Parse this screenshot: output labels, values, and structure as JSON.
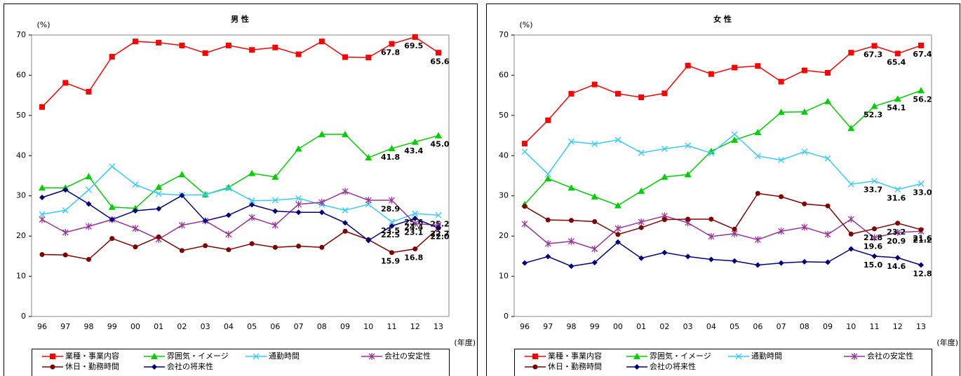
{
  "chart_data": [
    {
      "type": "line",
      "title": "男 性",
      "y_unit": "(%)",
      "x_unit": "(年度)",
      "categories": [
        "96",
        "97",
        "98",
        "99",
        "00",
        "01",
        "02",
        "03",
        "04",
        "05",
        "06",
        "07",
        "08",
        "09",
        "10",
        "11",
        "12",
        "13"
      ],
      "ylim": [
        0,
        70
      ],
      "yticks": [
        0,
        10,
        20,
        30,
        40,
        50,
        60,
        70
      ],
      "grid": false,
      "legend": "bottom",
      "series": [
        {
          "name": "業種・事業内容",
          "color": "#ff0000",
          "marker": "square",
          "values": [
            52.1,
            58.1,
            55.9,
            64.6,
            68.4,
            68.1,
            67.4,
            65.5,
            67.4,
            66.3,
            66.9,
            65.2,
            68.4,
            64.5,
            64.4,
            67.8,
            69.5,
            65.6
          ],
          "value_labels": [
            null,
            null,
            null,
            null,
            null,
            null,
            null,
            null,
            null,
            null,
            null,
            null,
            null,
            null,
            null,
            "67.8",
            "69.5",
            "65.6"
          ]
        },
        {
          "name": "雰囲気・イメージ",
          "color": "#00d000",
          "marker": "triangle",
          "values": [
            32.0,
            32.0,
            34.8,
            27.2,
            26.9,
            32.2,
            35.3,
            30.3,
            32.1,
            35.6,
            34.7,
            41.7,
            45.3,
            45.3,
            39.5,
            41.8,
            43.4,
            45.0
          ],
          "value_labels": [
            null,
            null,
            null,
            null,
            null,
            null,
            null,
            null,
            null,
            null,
            null,
            null,
            null,
            null,
            null,
            "41.8",
            "43.4",
            "45.0"
          ]
        },
        {
          "name": "通勤時間",
          "color": "#33ccff",
          "marker": "x",
          "values": [
            25.4,
            26.4,
            31.5,
            37.3,
            32.8,
            30.5,
            30.2,
            30.3,
            31.9,
            28.8,
            28.9,
            29.4,
            27.8,
            26.4,
            27.9,
            23.5,
            25.6,
            25.2
          ],
          "value_labels": [
            null,
            null,
            null,
            null,
            null,
            null,
            null,
            null,
            null,
            null,
            null,
            null,
            null,
            null,
            null,
            "23.5",
            "25.6",
            "25.2"
          ]
        },
        {
          "name": "会社の安定性",
          "color": "#993399",
          "marker": "asterisk",
          "values": [
            24.1,
            20.9,
            22.4,
            24.1,
            21.9,
            19.2,
            22.7,
            23.8,
            20.4,
            24.6,
            22.7,
            27.9,
            28.4,
            31.1,
            28.9,
            28.9,
            23.1,
            22.7
          ],
          "value_labels": [
            null,
            null,
            null,
            null,
            null,
            null,
            null,
            null,
            null,
            null,
            null,
            null,
            null,
            null,
            null,
            "28.9",
            "23.1",
            "22.7"
          ]
        },
        {
          "name": "休日・勤務時間",
          "color": "#800000",
          "marker": "circle",
          "values": [
            15.4,
            15.3,
            14.2,
            19.4,
            17.3,
            19.8,
            16.4,
            17.6,
            16.6,
            18.1,
            17.2,
            17.5,
            17.2,
            21.2,
            19.1,
            15.9,
            16.8,
            22.0
          ],
          "value_labels": [
            null,
            null,
            null,
            null,
            null,
            null,
            null,
            null,
            null,
            null,
            null,
            null,
            null,
            null,
            null,
            "15.9",
            "16.8",
            "22.0"
          ]
        },
        {
          "name": "会社の将来性",
          "color": "#000080",
          "marker": "diamond",
          "values": [
            29.6,
            31.5,
            28.0,
            24.1,
            26.3,
            26.8,
            30.1,
            23.8,
            25.2,
            27.8,
            26.2,
            25.9,
            25.9,
            23.3,
            18.9,
            22.5,
            24.4,
            22.0
          ],
          "value_labels": [
            null,
            null,
            null,
            null,
            null,
            null,
            null,
            null,
            null,
            null,
            null,
            null,
            null,
            null,
            null,
            "22.5",
            "24.4",
            null
          ]
        }
      ]
    },
    {
      "type": "line",
      "title": "女 性",
      "y_unit": "(%)",
      "x_unit": "(年度)",
      "categories": [
        "96",
        "97",
        "98",
        "99",
        "00",
        "01",
        "02",
        "03",
        "04",
        "05",
        "06",
        "07",
        "08",
        "09",
        "10",
        "11",
        "12",
        "13"
      ],
      "ylim": [
        0,
        70
      ],
      "yticks": [
        0,
        10,
        20,
        30,
        40,
        50,
        60,
        70
      ],
      "grid": false,
      "legend": "bottom",
      "series": [
        {
          "name": "業種・事業内容",
          "color": "#ff0000",
          "marker": "square",
          "values": [
            43.0,
            48.8,
            55.4,
            57.7,
            55.4,
            54.5,
            55.5,
            62.4,
            60.3,
            61.9,
            62.3,
            58.4,
            61.2,
            60.6,
            65.6,
            67.3,
            65.4,
            67.4
          ],
          "value_labels": [
            null,
            null,
            null,
            null,
            null,
            null,
            null,
            null,
            null,
            null,
            null,
            null,
            null,
            null,
            null,
            "67.3",
            "65.4",
            "67.4"
          ]
        },
        {
          "name": "雰囲気・イメージ",
          "color": "#00d000",
          "marker": "triangle",
          "values": [
            27.9,
            34.3,
            32.0,
            29.8,
            27.6,
            31.2,
            34.7,
            35.3,
            41.1,
            43.9,
            45.8,
            50.8,
            50.9,
            53.5,
            46.8,
            52.3,
            54.1,
            56.2
          ],
          "value_labels": [
            null,
            null,
            null,
            null,
            null,
            null,
            null,
            null,
            null,
            null,
            null,
            null,
            null,
            null,
            null,
            "52.3",
            "54.1",
            "56.2"
          ]
        },
        {
          "name": "通勤時間",
          "color": "#33ccff",
          "marker": "x",
          "values": [
            41.0,
            35.4,
            43.5,
            42.9,
            43.9,
            40.7,
            41.7,
            42.5,
            40.6,
            45.3,
            39.9,
            38.9,
            41.0,
            39.3,
            32.9,
            33.7,
            31.6,
            33.0
          ],
          "value_labels": [
            null,
            null,
            null,
            null,
            null,
            null,
            null,
            null,
            null,
            null,
            null,
            null,
            null,
            null,
            null,
            "33.7",
            "31.6",
            "33.0"
          ]
        },
        {
          "name": "会社の安定性",
          "color": "#993399",
          "marker": "asterisk",
          "values": [
            23.0,
            18.1,
            18.7,
            16.8,
            21.9,
            23.5,
            25.0,
            23.3,
            19.9,
            20.6,
            19.1,
            21.2,
            22.2,
            20.4,
            24.2,
            19.6,
            20.9,
            21.2
          ],
          "value_labels": [
            null,
            null,
            null,
            null,
            null,
            null,
            null,
            null,
            null,
            null,
            null,
            null,
            null,
            null,
            null,
            "19.6",
            "20.9",
            "21.2"
          ]
        },
        {
          "name": "休日・勤務時間",
          "color": "#800000",
          "marker": "circle",
          "values": [
            27.4,
            24.0,
            23.9,
            23.6,
            20.4,
            22.1,
            24.1,
            24.2,
            24.2,
            21.7,
            30.6,
            29.8,
            28.0,
            27.5,
            20.5,
            21.8,
            23.2,
            21.6
          ],
          "value_labels": [
            null,
            null,
            null,
            null,
            null,
            null,
            null,
            null,
            null,
            null,
            null,
            null,
            null,
            null,
            null,
            "21.8",
            "23.2",
            "21.6"
          ]
        },
        {
          "name": "会社の将来性",
          "color": "#000080",
          "marker": "diamond",
          "values": [
            13.3,
            14.9,
            12.5,
            13.4,
            18.5,
            14.5,
            15.9,
            14.9,
            14.2,
            13.8,
            12.8,
            13.3,
            13.6,
            13.5,
            16.8,
            15.0,
            14.6,
            12.8
          ],
          "value_labels": [
            null,
            null,
            null,
            null,
            null,
            null,
            null,
            null,
            null,
            null,
            null,
            null,
            null,
            null,
            null,
            "15.0",
            "14.6",
            "12.8"
          ]
        }
      ]
    }
  ]
}
